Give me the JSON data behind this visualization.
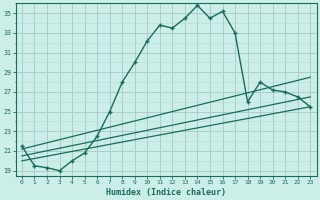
{
  "title": "",
  "xlabel": "Humidex (Indice chaleur)",
  "background_color": "#cceee8",
  "grid_color_major": "#aacccc",
  "grid_color_minor": "#bbdddd",
  "line_color": "#1a6b5a",
  "xlim": [
    -0.5,
    23.5
  ],
  "ylim": [
    18.5,
    36.0
  ],
  "xticks": [
    0,
    1,
    2,
    3,
    4,
    5,
    6,
    7,
    8,
    9,
    10,
    11,
    12,
    13,
    14,
    15,
    16,
    17,
    18,
    19,
    20,
    21,
    22,
    23
  ],
  "yticks": [
    19,
    21,
    23,
    25,
    27,
    29,
    31,
    33,
    35
  ],
  "main_x": [
    0,
    1,
    2,
    3,
    4,
    5,
    6,
    7,
    8,
    9,
    10,
    11,
    12,
    13,
    14,
    15,
    16,
    17,
    18,
    19,
    20,
    21,
    22,
    23
  ],
  "main_y": [
    21.5,
    19.5,
    19.3,
    19.0,
    20.0,
    20.8,
    22.5,
    25.0,
    28.0,
    30.0,
    32.2,
    33.8,
    33.5,
    34.5,
    35.8,
    34.5,
    35.2,
    33.0,
    26.0,
    28.0,
    27.2,
    27.0,
    26.5,
    25.5
  ],
  "line2_x": [
    0,
    23
  ],
  "line2_y": [
    21.2,
    28.5
  ],
  "line3_x": [
    0,
    23
  ],
  "line3_y": [
    20.5,
    26.5
  ],
  "line4_x": [
    0,
    23
  ],
  "line4_y": [
    20.0,
    25.5
  ]
}
